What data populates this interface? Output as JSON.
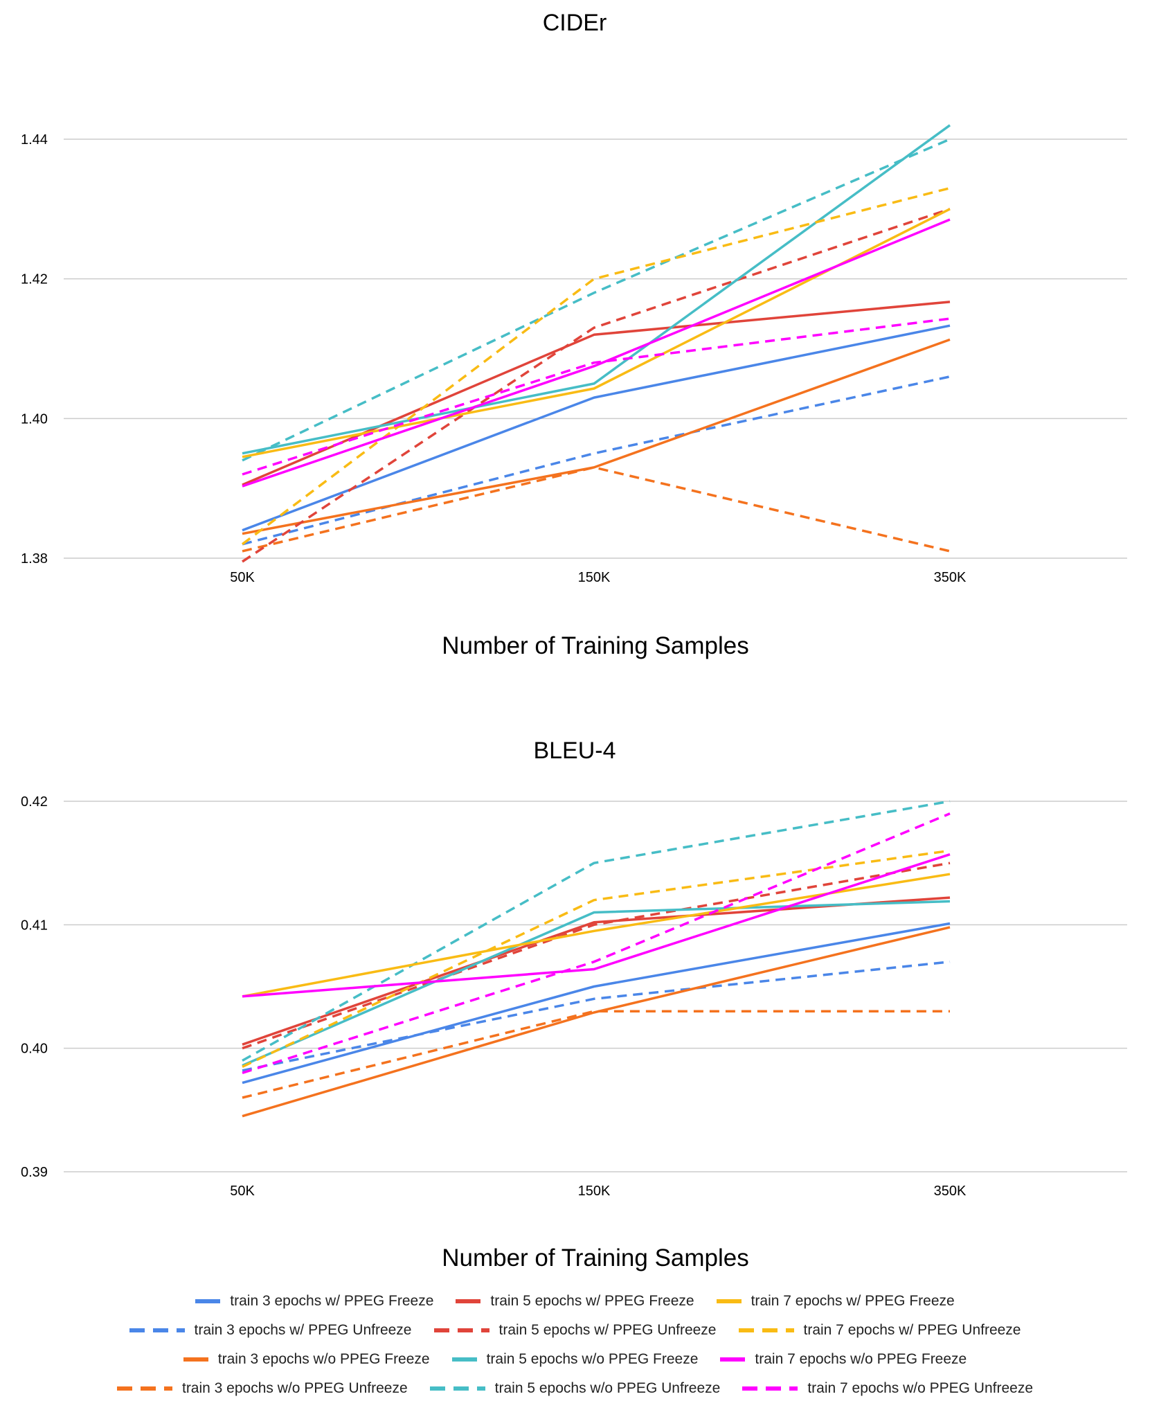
{
  "xlabel": "Number of Training Samples",
  "series_styles": [
    {
      "name": "train 3 epochs w/ PPEG Freeze",
      "color": "#4a86e8",
      "dashed": false
    },
    {
      "name": "train 3 epochs w/ PPEG Unfreeze",
      "color": "#4a86e8",
      "dashed": true
    },
    {
      "name": "train 3 epochs w/o PPEG Freeze",
      "color": "#f4721e",
      "dashed": false
    },
    {
      "name": "train 3 epochs w/o PPEG Unfreeze",
      "color": "#f4721e",
      "dashed": true
    },
    {
      "name": "train 5 epochs w/ PPEG Freeze",
      "color": "#e0443a",
      "dashed": false
    },
    {
      "name": "train 5 epochs w/ PPEG Unfreeze",
      "color": "#e0443a",
      "dashed": true
    },
    {
      "name": "train 5 epochs w/o PPEG Freeze",
      "color": "#46bdc6",
      "dashed": false
    },
    {
      "name": "train 5 epochs w/o PPEG Unfreeze",
      "color": "#46bdc6",
      "dashed": true
    },
    {
      "name": "train 7 epochs w/ PPEG Freeze",
      "color": "#f9bb14",
      "dashed": false
    },
    {
      "name": "train 7 epochs w/ PPEG Unfreeze",
      "color": "#f9bb14",
      "dashed": true
    },
    {
      "name": "train 7 epochs w/o PPEG Freeze",
      "color": "#ff00ff",
      "dashed": false
    },
    {
      "name": "train 7 epochs w/o PPEG Unfreeze",
      "color": "#ff00ff",
      "dashed": true
    }
  ],
  "legend_rows": [
    [
      "train 3 epochs w/ PPEG Freeze",
      "train 5 epochs w/ PPEG Freeze",
      "train 7 epochs w/ PPEG Freeze"
    ],
    [
      "train 3 epochs w/ PPEG Unfreeze",
      "train 5 epochs w/ PPEG Unfreeze",
      "train 7 epochs w/ PPEG Unfreeze"
    ],
    [
      "train 3 epochs w/o PPEG Freeze",
      "train 5 epochs w/o PPEG Freeze",
      "train 7 epochs w/o PPEG Freeze"
    ],
    [
      "train 3 epochs w/o PPEG Unfreeze",
      "train 5 epochs w/o PPEG Unfreeze",
      "train 7 epochs w/o PPEG Unfreeze"
    ]
  ],
  "chart_data": [
    {
      "type": "line",
      "title": "CIDEr",
      "xlabel": "Number of Training Samples",
      "ylabel": "",
      "categories": [
        "50K",
        "150K",
        "350K"
      ],
      "ylim": [
        1.38,
        1.445
      ],
      "yticks": [
        "1.38",
        "1.40",
        "1.42",
        "1.44"
      ],
      "ytick_values": [
        1.38,
        1.4,
        1.42,
        1.44
      ],
      "grid": true,
      "legend": "bottom",
      "series": [
        {
          "name": "train 3 epochs w/ PPEG Freeze",
          "values": [
            1.384,
            1.403,
            1.4133
          ]
        },
        {
          "name": "train 3 epochs w/ PPEG Unfreeze",
          "values": [
            1.382,
            1.395,
            1.406
          ]
        },
        {
          "name": "train 3 epochs w/o PPEG Freeze",
          "values": [
            1.3835,
            1.393,
            1.4113
          ]
        },
        {
          "name": "train 3 epochs w/o PPEG Unfreeze",
          "values": [
            1.381,
            1.393,
            1.381
          ]
        },
        {
          "name": "train 5 epochs w/ PPEG Freeze",
          "values": [
            1.3905,
            1.412,
            1.4167
          ]
        },
        {
          "name": "train 5 epochs w/ PPEG Unfreeze",
          "values": [
            1.3795,
            1.413,
            1.43
          ]
        },
        {
          "name": "train 5 epochs w/o PPEG Freeze",
          "values": [
            1.395,
            1.405,
            1.442
          ]
        },
        {
          "name": "train 5 epochs w/o PPEG Unfreeze",
          "values": [
            1.394,
            1.418,
            1.44
          ]
        },
        {
          "name": "train 7 epochs w/ PPEG Freeze",
          "values": [
            1.3945,
            1.4043,
            1.43
          ]
        },
        {
          "name": "train 7 epochs w/ PPEG Unfreeze",
          "values": [
            1.382,
            1.42,
            1.433
          ]
        },
        {
          "name": "train 7 epochs w/o PPEG Freeze",
          "values": [
            1.3903,
            1.4075,
            1.4285
          ]
        },
        {
          "name": "train 7 epochs w/o PPEG Unfreeze",
          "values": [
            1.392,
            1.408,
            1.4143
          ]
        }
      ]
    },
    {
      "type": "line",
      "title": "BLEU-4",
      "xlabel": "Number of Training Samples",
      "ylabel": "",
      "categories": [
        "50K",
        "150K",
        "350K"
      ],
      "ylim": [
        0.39,
        0.42
      ],
      "yticks": [
        "0.39",
        "0.40",
        "0.41",
        "0.42"
      ],
      "ytick_values": [
        0.39,
        0.4,
        0.41,
        0.42
      ],
      "grid": true,
      "legend": "bottom",
      "series": [
        {
          "name": "train 3 epochs w/ PPEG Freeze",
          "values": [
            0.3972,
            0.405,
            0.4101
          ]
        },
        {
          "name": "train 3 epochs w/ PPEG Unfreeze",
          "values": [
            0.3982,
            0.404,
            0.407
          ]
        },
        {
          "name": "train 3 epochs w/o PPEG Freeze",
          "values": [
            0.3945,
            0.4029,
            0.4098
          ]
        },
        {
          "name": "train 3 epochs w/o PPEG Unfreeze",
          "values": [
            0.396,
            0.403,
            0.403
          ]
        },
        {
          "name": "train 5 epochs w/ PPEG Freeze",
          "values": [
            0.4003,
            0.4102,
            0.4122
          ]
        },
        {
          "name": "train 5 epochs w/ PPEG Unfreeze",
          "values": [
            0.4,
            0.41,
            0.415
          ]
        },
        {
          "name": "train 5 epochs w/o PPEG Freeze",
          "values": [
            0.3986,
            0.411,
            0.4119
          ]
        },
        {
          "name": "train 5 epochs w/o PPEG Unfreeze",
          "values": [
            0.399,
            0.415,
            0.42
          ]
        },
        {
          "name": "train 7 epochs w/ PPEG Freeze",
          "values": [
            0.4042,
            0.4095,
            0.4141
          ]
        },
        {
          "name": "train 7 epochs w/ PPEG Unfreeze",
          "values": [
            0.3985,
            0.412,
            0.416
          ]
        },
        {
          "name": "train 7 epochs w/o PPEG Freeze",
          "values": [
            0.4042,
            0.4064,
            0.4157
          ]
        },
        {
          "name": "train 7 epochs w/o PPEG Unfreeze",
          "values": [
            0.398,
            0.407,
            0.419
          ]
        }
      ]
    }
  ]
}
